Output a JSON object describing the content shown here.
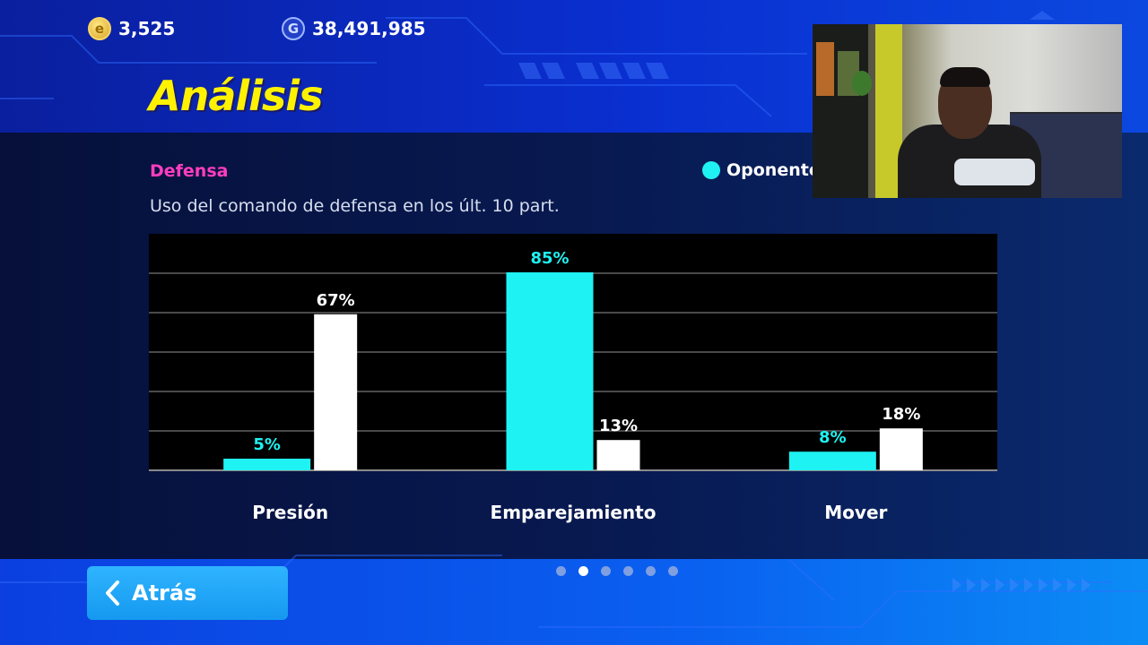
{
  "currencies": [
    {
      "icon": "e-coin-icon",
      "value": "3,525"
    },
    {
      "icon": "gp-coin-icon",
      "value": "38,491,985"
    }
  ],
  "page": {
    "title": "Análisis",
    "section": "Defensa",
    "subtitle": "Uso del comando de defensa en los últ. 10 part."
  },
  "legend": {
    "label": "Oponente",
    "color": "#1ff2f2"
  },
  "chart_data": {
    "type": "bar",
    "categories": [
      "Presión",
      "Emparejamiento",
      "Mover"
    ],
    "series": [
      {
        "name": "Oponente",
        "values": [
          5,
          85,
          8
        ],
        "color": "#1ff2f2"
      },
      {
        "values": [
          67,
          13,
          18
        ],
        "color": "#ffffff"
      }
    ],
    "value_labels": [
      [
        "5%",
        "85%",
        "8%"
      ],
      [
        "67%",
        "13%",
        "18%"
      ]
    ],
    "ylim": [
      0,
      100
    ],
    "grid": true,
    "legend_position": "top-right"
  },
  "pagination": {
    "total": 6,
    "active": 1
  },
  "back_button": {
    "label": "Atrás"
  },
  "colors": {
    "title": "#fff200",
    "section": "#ff3dbf",
    "accent": "#1599f0"
  }
}
